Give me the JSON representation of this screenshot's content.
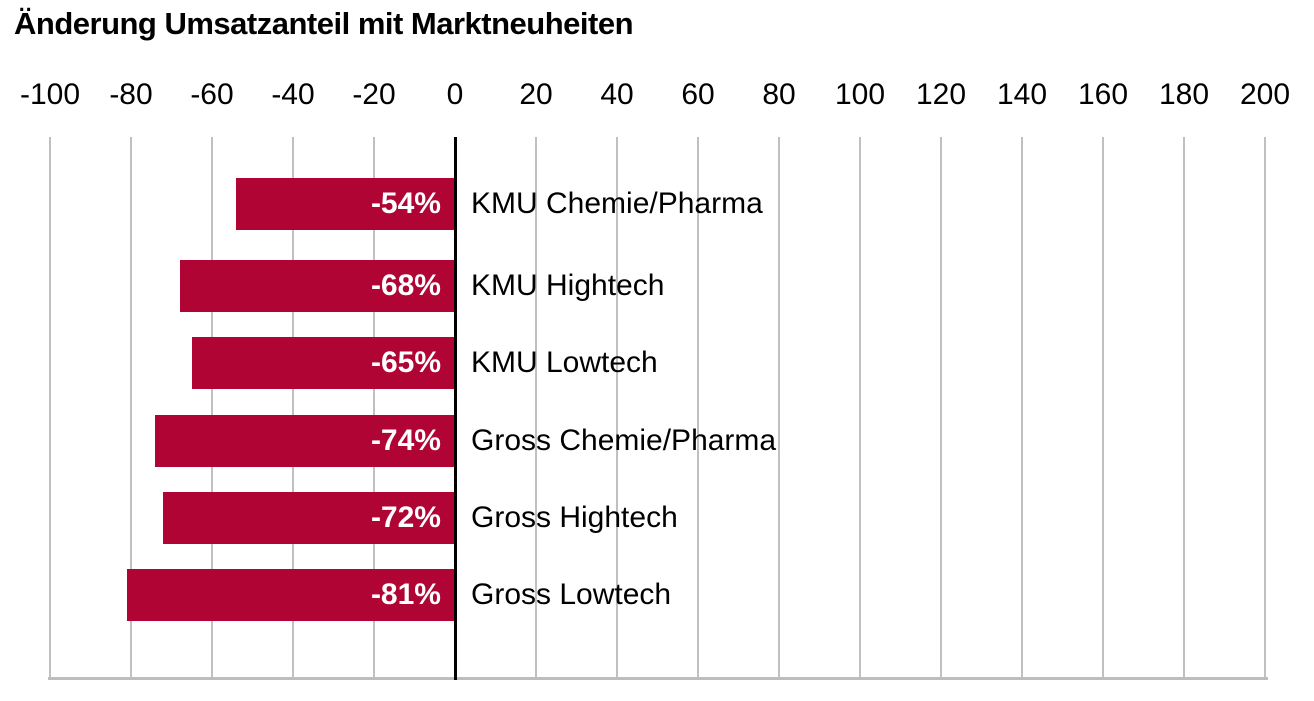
{
  "title": "Änderung Umsatzanteil mit Marktneuheiten",
  "colors": {
    "bar": "#AF0434",
    "gridline": "#C0C0C0",
    "axis_line": "#BDBDBD",
    "zero_line": "#000000",
    "value_label": "#FFFFFF",
    "text": "#000000"
  },
  "chart_data": {
    "type": "bar",
    "orientation": "horizontal",
    "title": "Änderung Umsatzanteil mit Marktneuheiten",
    "categories": [
      "KMU Chemie/Pharma",
      "KMU Hightech",
      "KMU Lowtech",
      "Gross Chemie/Pharma",
      "Gross Hightech",
      "Gross Lowtech"
    ],
    "values": [
      -54,
      -68,
      -65,
      -74,
      -72,
      -81
    ],
    "value_labels": [
      "-54%",
      "-68%",
      "-65%",
      "-74%",
      "-72%",
      "-81%"
    ],
    "unit": "%",
    "xlim": [
      -100,
      200
    ],
    "x_ticks": [
      -100,
      -80,
      -60,
      -40,
      -20,
      0,
      20,
      40,
      60,
      80,
      100,
      120,
      140,
      160,
      180,
      200
    ],
    "x_tick_labels": [
      "-100",
      "-80",
      "-60",
      "-40",
      "-20",
      "0",
      "20",
      "40",
      "60",
      "80",
      "100",
      "120",
      "140",
      "160",
      "180",
      "200"
    ],
    "grid": true,
    "legend": false
  }
}
